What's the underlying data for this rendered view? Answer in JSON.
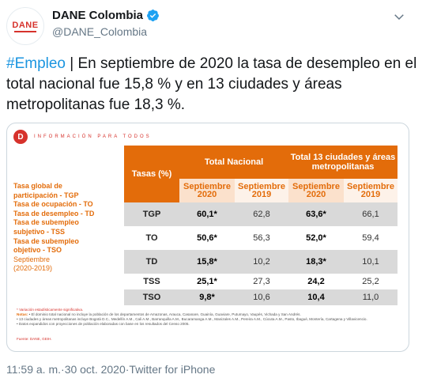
{
  "header": {
    "avatar_text": "DANE",
    "display_name": "DANE Colombia",
    "handle": "@DANE_Colombia"
  },
  "tweet": {
    "hashtag": "#Empleo",
    "text": " | En septiembre de 2020 la tasa de desempleo en el total nacional fue 15,8 % y en 13 ciudades y áreas metropolitanas fue 18,3 %."
  },
  "media": {
    "tagline": "INFORMACIÓN PARA TODOS",
    "legend": [
      "Tasa global de",
      "participación - TGP",
      "Tasa de ocupación - TO",
      "Tasa de desempleo - TD",
      "Tasa de subempleo",
      "subjetivo - TSS",
      "Tasa de subempleo",
      "objetivo - TSO"
    ],
    "legend_period": "Septiembre",
    "legend_period_years": "(2020-2019)",
    "table": {
      "col_rates": "Tasas (%)",
      "group1": "Total Nacional",
      "group2": "Total 13 ciudades y áreas metropolitanas",
      "sub": [
        "Septiembre 2020",
        "Septiembre 2019",
        "Septiembre 2020",
        "Septiembre 2019"
      ],
      "rows": [
        {
          "label": "TGP",
          "v": [
            "60,1*",
            "62,8",
            "63,6*",
            "66,1"
          ]
        },
        {
          "label": "TO",
          "v": [
            "50,6*",
            "56,3",
            "52,0*",
            "59,4"
          ]
        },
        {
          "label": "TD",
          "v": [
            "15,8*",
            "10,2",
            "18,3*",
            "10,1"
          ]
        },
        {
          "label": "TSS",
          "v": [
            "25,1*",
            "27,3",
            "24,2",
            "25,2"
          ]
        },
        {
          "label": "TSO",
          "v": [
            "9,8*",
            "10,6",
            "10,4",
            "11,0"
          ]
        }
      ]
    },
    "notes": {
      "star_note": "* Variación estadísticamente significativa.",
      "label": "Notas:",
      "n1": "• El dominio total nacional no incluye la población de los departamentos de Amazonas, Arauca, Casanare, Guainía, Guaviare, Putumayo, Vaupés, Vichada y San Andrés.",
      "n2": "• 13 ciudades y áreas metropolitanas incluye Bogotá D.C., Medellín A.M., Cali A.M., Barranquilla A.M., Bucaramanga A.M., Manizales A.M., Pereira A.M., Cúcuta A.M., Pasto, Ibagué, Montería, Cartagena y Villavicencio.",
      "n3": "• Datos expandidos con proyecciones de población elaboradas con base en los resultados del Censo 2005.",
      "source": "Fuente: DANE, GEIH."
    }
  },
  "footer": {
    "time": "11:59 a. m.",
    "sep1": " · ",
    "date": "30 oct. 2020",
    "sep2": " · ",
    "client": "Twitter for iPhone"
  }
}
